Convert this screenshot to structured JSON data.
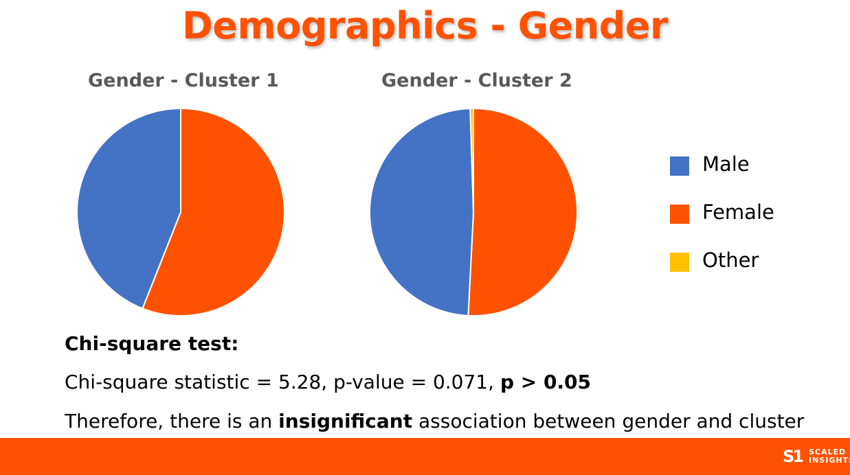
{
  "title": "Demographics - Gender",
  "chart_data": [
    {
      "type": "pie",
      "title": "Gender - Cluster 1",
      "categories": [
        "Male",
        "Female",
        "Other"
      ],
      "values": [
        44,
        56,
        0
      ],
      "colors": [
        "#4472c4",
        "#ff5200",
        "#ffc000"
      ]
    },
    {
      "type": "pie",
      "title": "Gender - Cluster 2",
      "categories": [
        "Male",
        "Female",
        "Other"
      ],
      "values": [
        48.7,
        50.8,
        0.5
      ],
      "colors": [
        "#4472c4",
        "#ff5200",
        "#ffc000"
      ]
    }
  ],
  "legend": {
    "items": [
      {
        "label": "Male",
        "color": "#4472c4"
      },
      {
        "label": "Female",
        "color": "#ff5200"
      },
      {
        "label": "Other",
        "color": "#ffc000"
      }
    ]
  },
  "stats": {
    "heading": "Chi-square test:",
    "line1": "Chi-square statistic = 5.28, p-value = 0.071, ",
    "line1_bold": "p > 0.05",
    "line2_prefix": "Therefore, there is an ",
    "line2_bold": "insignificant",
    "line2_suffix": " association between gender and cluster"
  },
  "footer": {
    "logo_mark": "S1",
    "logo_line1": "SCALED",
    "logo_line2": "INSIGHTS"
  },
  "colors": {
    "accent": "#ff5200",
    "male": "#4472c4",
    "female": "#ff5200",
    "other": "#ffc000",
    "chart_title": "#595959"
  }
}
